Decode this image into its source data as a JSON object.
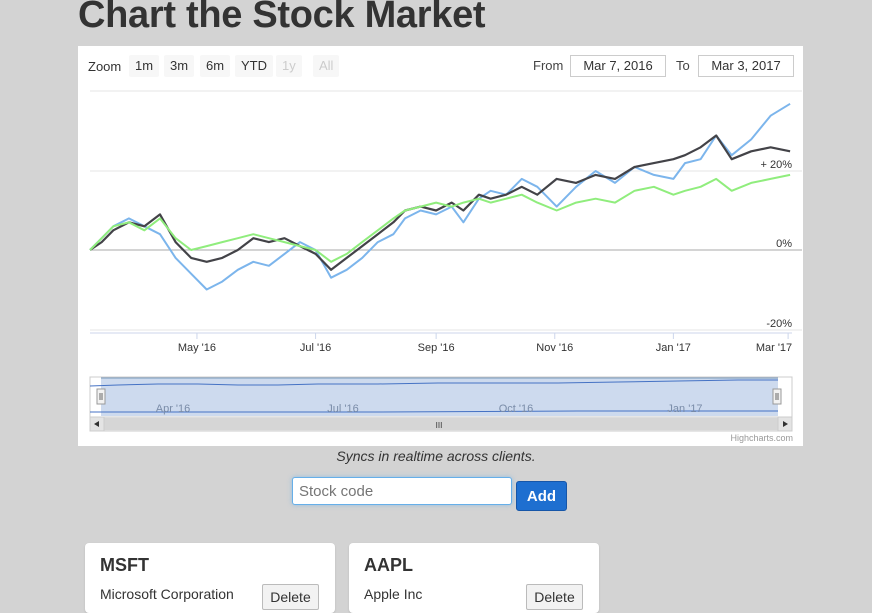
{
  "page": {
    "title": "Chart the Stock Market",
    "caption": "Syncs in realtime across clients."
  },
  "toolbar": {
    "zoom_label": "Zoom",
    "zoom_buttons": [
      {
        "label": "1m",
        "enabled": true
      },
      {
        "label": "3m",
        "enabled": true
      },
      {
        "label": "6m",
        "enabled": true
      },
      {
        "label": "YTD",
        "enabled": true
      },
      {
        "label": "1y",
        "enabled": false
      },
      {
        "label": "All",
        "enabled": false
      }
    ],
    "from_label": "From",
    "from_value": "Mar 7, 2016",
    "to_label": "To",
    "to_value": "Mar 3, 2017"
  },
  "navigator": {
    "labels": [
      "Apr '16",
      "Jul '16",
      "Oct '16",
      "Jan '17"
    ],
    "scroll_grip": "III"
  },
  "credits": "Highcharts.com",
  "form": {
    "placeholder": "Stock code",
    "add_label": "Add"
  },
  "stocks": [
    {
      "symbol": "MSFT",
      "name": "Microsoft Corporation",
      "delete_label": "Delete"
    },
    {
      "symbol": "AAPL",
      "name": "Apple Inc",
      "delete_label": "Delete"
    }
  ],
  "colors": {
    "series_blue": "#7cb5ec",
    "series_black": "#434348",
    "series_green": "#90ed7d",
    "add_button": "#1e6fd0",
    "background": "#d3d3d3",
    "navigator_mask": "#c8d6ec"
  },
  "chart_data": {
    "type": "line",
    "x_tick_labels": [
      "May '16",
      "Jul '16",
      "Sep '16",
      "Nov '16",
      "Jan '17",
      "Mar '17"
    ],
    "y_tick_labels": [
      "+ 20%",
      "0%",
      "-20%"
    ],
    "ylim": [
      -20,
      40
    ],
    "x_range": [
      "2016-03-07",
      "2017-03-03"
    ],
    "grid": true,
    "legend": "none",
    "series": [
      {
        "color": "#7cb5ec",
        "x": [
          0,
          6,
          12,
          20,
          28,
          36,
          44,
          52,
          60,
          68,
          76,
          84,
          92,
          100,
          108,
          116,
          124,
          132,
          140,
          148,
          156,
          162,
          170,
          178,
          186,
          192,
          200,
          206,
          214,
          222,
          230,
          240,
          250,
          260,
          270,
          280,
          290,
          300,
          306,
          314,
          322,
          330,
          340,
          350,
          360
        ],
        "values": [
          0,
          3,
          6,
          8,
          6,
          4,
          -2,
          -6,
          -10,
          -8,
          -5,
          -3,
          -4,
          -1,
          2,
          0,
          -7,
          -5,
          -2,
          2,
          4,
          8,
          10,
          9,
          11,
          7,
          13,
          15,
          14,
          18,
          16,
          11,
          16,
          20,
          17,
          21,
          19,
          18,
          22,
          23,
          29,
          24,
          28,
          34,
          37
        ]
      },
      {
        "color": "#434348",
        "x": [
          0,
          6,
          12,
          20,
          28,
          36,
          44,
          52,
          60,
          68,
          76,
          84,
          92,
          100,
          108,
          116,
          124,
          132,
          140,
          148,
          156,
          162,
          170,
          178,
          186,
          192,
          200,
          206,
          214,
          222,
          230,
          240,
          250,
          260,
          270,
          280,
          290,
          300,
          306,
          314,
          322,
          330,
          340,
          350,
          360
        ],
        "values": [
          0,
          2,
          5,
          7,
          6,
          9,
          2,
          -2,
          -3,
          -2,
          0,
          3,
          2,
          3,
          1,
          -1,
          -5,
          -2,
          1,
          4,
          7,
          10,
          11,
          10,
          12,
          10,
          14,
          13,
          14,
          16,
          14,
          18,
          17,
          19,
          18,
          21,
          22,
          23,
          24,
          26,
          29,
          23,
          25,
          26,
          25
        ]
      },
      {
        "color": "#90ed7d",
        "x": [
          0,
          6,
          12,
          20,
          28,
          36,
          44,
          52,
          60,
          68,
          76,
          84,
          92,
          100,
          108,
          116,
          124,
          132,
          140,
          148,
          156,
          162,
          170,
          178,
          186,
          192,
          200,
          206,
          214,
          222,
          230,
          240,
          250,
          260,
          270,
          280,
          290,
          300,
          306,
          314,
          322,
          330,
          340,
          350,
          360
        ],
        "values": [
          0,
          3,
          6,
          7,
          5,
          8,
          3,
          0,
          1,
          2,
          3,
          4,
          3,
          2,
          1,
          0,
          -3,
          -1,
          2,
          5,
          8,
          10,
          11,
          12,
          11,
          12,
          13,
          12,
          13,
          14,
          12,
          10,
          12,
          13,
          12,
          15,
          16,
          14,
          15,
          16,
          18,
          15,
          17,
          18,
          19
        ]
      }
    ]
  }
}
